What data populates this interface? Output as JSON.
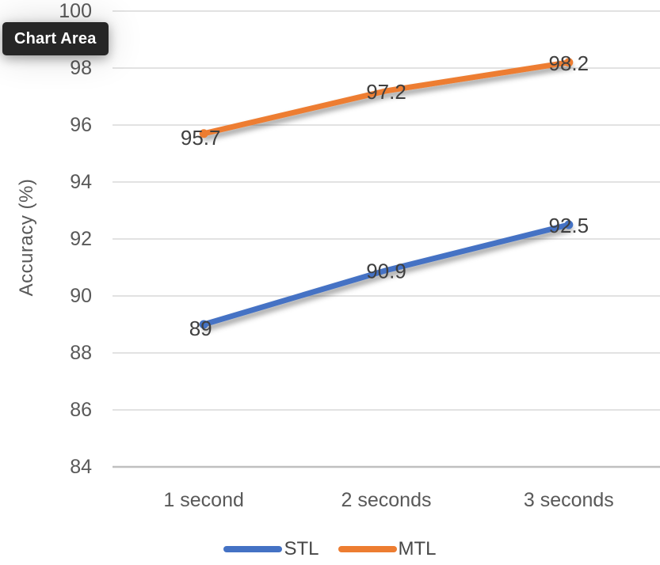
{
  "tooltip": {
    "label": "Chart Area"
  },
  "chart_data": {
    "type": "line",
    "categories": [
      "1 second",
      "2 seconds",
      "3 seconds"
    ],
    "series": [
      {
        "name": "STL",
        "values": [
          89,
          90.9,
          92.5
        ],
        "color": "#4472C4"
      },
      {
        "name": "MTL",
        "values": [
          95.7,
          97.2,
          98.2
        ],
        "color": "#ED7D31"
      }
    ],
    "title": "",
    "xlabel": "",
    "ylabel": "Accuracy (%)",
    "ylim": [
      84,
      100
    ],
    "ytick_step": 2,
    "ytick_labels": [
      "84",
      "86",
      "88",
      "90",
      "92",
      "94",
      "96",
      "98",
      "100"
    ],
    "data_labels": {
      "STL": [
        "89",
        "90.9",
        "92.5"
      ],
      "MTL": [
        "95.7",
        "97.2",
        "98.2"
      ]
    },
    "grid": true,
    "legend_position": "bottom"
  },
  "colors": {
    "gridline": "#D9D9D9",
    "axis_line": "#BFBFBF",
    "axis_text": "#595959",
    "data_label_text": "#3F3F3F",
    "legend_text": "#474747",
    "tooltip_bg": "#262626",
    "tooltip_text": "#FFFFFF"
  }
}
